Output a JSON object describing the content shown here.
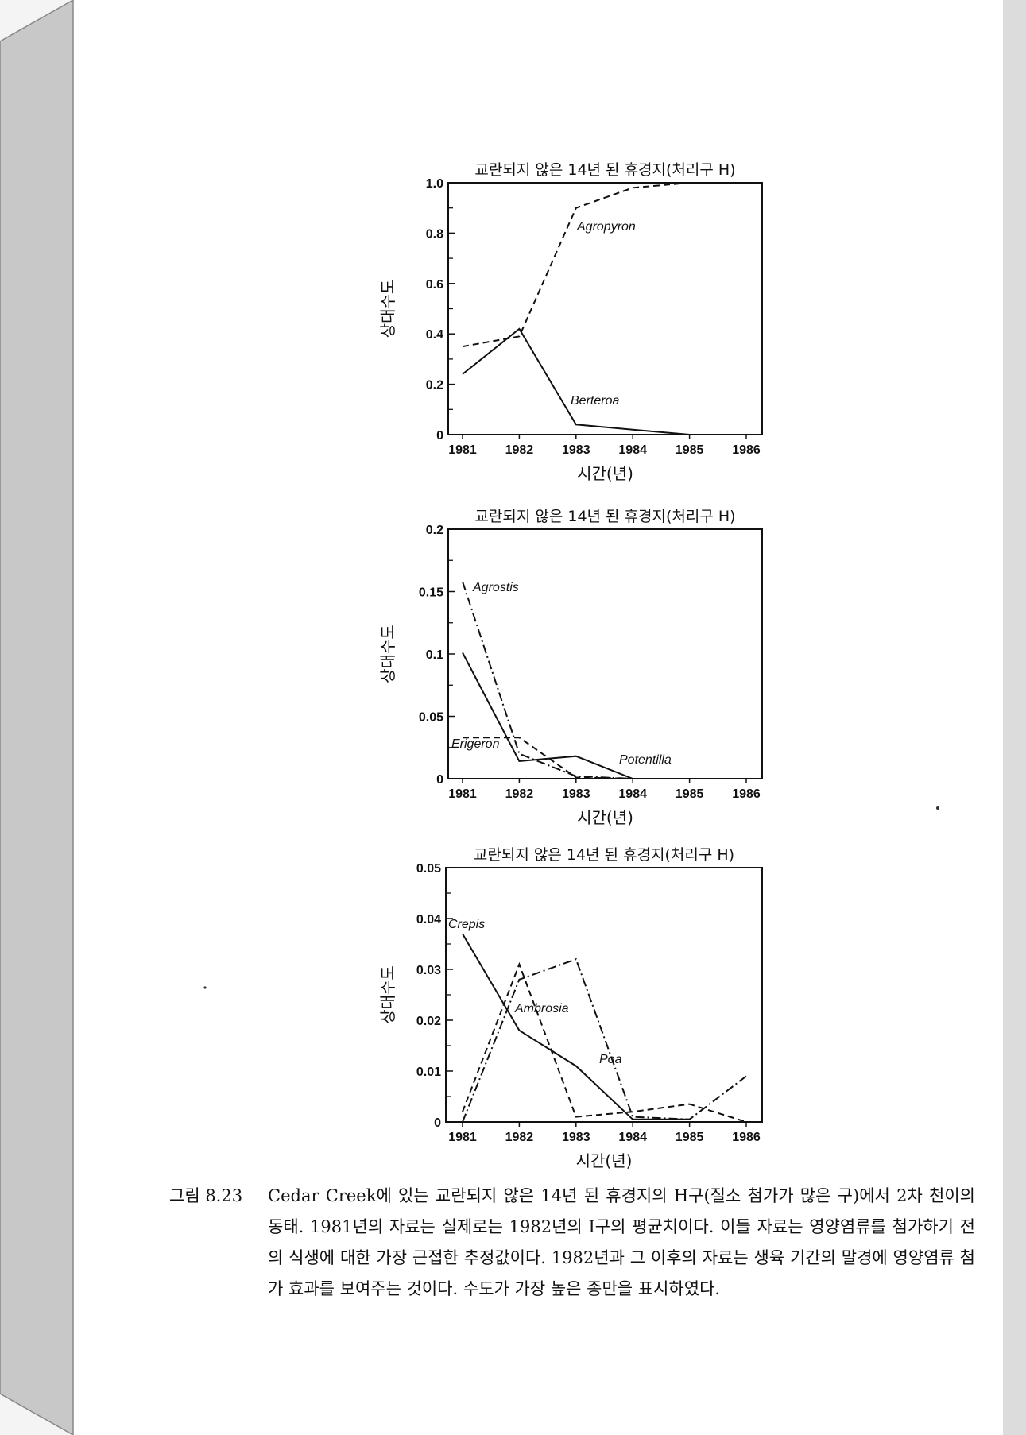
{
  "chart_data": [
    {
      "type": "line",
      "title": "교란되지 않은 14년 된 휴경지(처리구 H)",
      "xlabel": "시간(년)",
      "ylabel": "상대수도",
      "x": [
        1981,
        1982,
        1983,
        1984,
        1985,
        1986
      ],
      "xticks": [
        "1981",
        "1982",
        "1983",
        "1984",
        "1985",
        "1986"
      ],
      "yticks": [
        "0",
        "0.2",
        "0.4",
        "0.6",
        "0.8",
        "1.0"
      ],
      "ylim": [
        0,
        1.0
      ],
      "grid": false,
      "series": [
        {
          "name": "Agropyron",
          "style": "dashed",
          "values": [
            0.35,
            0.39,
            0.9,
            0.98,
            1.0,
            1.0
          ]
        },
        {
          "name": "Berteroa",
          "style": "solid",
          "values": [
            0.24,
            0.42,
            0.04,
            0.02,
            0.0,
            0.0
          ]
        }
      ]
    },
    {
      "type": "line",
      "title": "교란되지 않은 14년 된 휴경지(처리구 H)",
      "xlabel": "시간(년)",
      "ylabel": "상대수도",
      "x": [
        1981,
        1982,
        1983,
        1984,
        1985,
        1986
      ],
      "xticks": [
        "1981",
        "1982",
        "1983",
        "1984",
        "1985",
        "1986"
      ],
      "yticks": [
        "0",
        "0.05",
        "0.1",
        "0.15",
        "0.2"
      ],
      "ylim": [
        0,
        0.2
      ],
      "grid": false,
      "series": [
        {
          "name": "Agrostis",
          "style": "dashdot",
          "values": [
            0.158,
            0.02,
            0.002,
            0.0,
            0.0,
            0.0
          ]
        },
        {
          "name": "Erigeron",
          "style": "dashed",
          "values": [
            0.033,
            0.033,
            0.001,
            0.0,
            0.0,
            0.0
          ]
        },
        {
          "name": "Potentilla",
          "style": "solid",
          "values": [
            0.101,
            0.014,
            0.018,
            0.0,
            0.0,
            0.0
          ]
        }
      ]
    },
    {
      "type": "line",
      "title": "교란되지 않은 14년 된 휴경지(처리구 H)",
      "xlabel": "시간(년)",
      "ylabel": "상대수도",
      "x": [
        1981,
        1982,
        1983,
        1984,
        1985,
        1986
      ],
      "xticks": [
        "1981",
        "1982",
        "1983",
        "1984",
        "1985",
        "1986"
      ],
      "yticks": [
        "0",
        "0.01",
        "0.02",
        "0.03",
        "0.04",
        "0.05"
      ],
      "ylim": [
        0,
        0.05
      ],
      "grid": false,
      "series": [
        {
          "name": "Crepis",
          "style": "solid",
          "values": [
            0.037,
            0.018,
            0.011,
            0.0005,
            0.0005,
            null
          ]
        },
        {
          "name": "Ambrosia",
          "style": "dashed",
          "values": [
            0.002,
            0.031,
            0.001,
            0.002,
            0.0035,
            0.0
          ]
        },
        {
          "name": "Poa",
          "style": "dashdot",
          "values": [
            0.0,
            0.028,
            0.032,
            0.001,
            0.0005,
            0.009
          ]
        }
      ]
    }
  ],
  "caption": {
    "label": "그림 8.23",
    "text": "Cedar Creek에 있는 교란되지 않은 14년 된 휴경지의 H구(질소 첨가가 많은 구)에서 2차 천이의 동태. 1981년의 자료는 실제로는 1982년의 I구의 평균치이다. 이들 자료는 영양염류를 첨가하기 전의 식생에 대한 가장 근접한 추정값이다. 1982년과 그 이후의 자료는 생육 기간의 말경에 영양염류 첨가 효과를 보여주는 것이다. 수도가 가장 높은 종만을 표시하였다."
  },
  "colors": {
    "ink": "#111111",
    "page": "#ffffff",
    "spine": "#c8c8c8"
  }
}
